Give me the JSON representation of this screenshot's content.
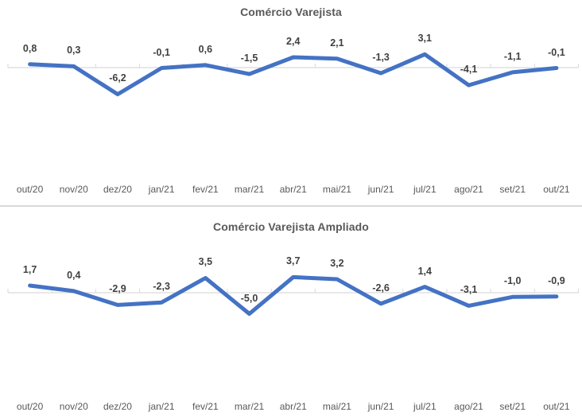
{
  "colors": {
    "line": "#4472C4",
    "axis": "#D9D9D9",
    "data_label": "#404040",
    "axis_label": "#595959",
    "title": "#595959",
    "divider": "#D9D9D9",
    "background": "#FFFFFF"
  },
  "chart_data": [
    {
      "type": "line",
      "title": "Comércio Varejista",
      "categories": [
        "out/20",
        "nov/20",
        "dez/20",
        "jan/21",
        "fev/21",
        "mar/21",
        "abr/21",
        "mai/21",
        "jun/21",
        "jul/21",
        "ago/21",
        "set/21",
        "out/21"
      ],
      "series": [
        {
          "name": "Comércio Varejista",
          "values": [
            0.8,
            0.3,
            -6.2,
            -0.1,
            0.6,
            -1.5,
            2.4,
            2.1,
            -1.3,
            3.1,
            -4.1,
            -1.1,
            -0.1
          ]
        }
      ],
      "data_labels": [
        "0,8",
        "0,3",
        "-6,2",
        "-0,1",
        "0,6",
        "-1,5",
        "2,4",
        "2,1",
        "-1,3",
        "3,1",
        "-4,1",
        "-1,1",
        "-0,1"
      ],
      "xlabel": "",
      "ylabel": "",
      "ylim": [
        -8,
        4
      ],
      "grid": false,
      "legend": "none",
      "decimal_separator": ","
    },
    {
      "type": "line",
      "title": "Comércio Varejista Ampliado",
      "categories": [
        "out/20",
        "nov/20",
        "dez/20",
        "jan/21",
        "fev/21",
        "mar/21",
        "abr/21",
        "mai/21",
        "jun/21",
        "jul/21",
        "ago/21",
        "set/21",
        "out/21"
      ],
      "series": [
        {
          "name": "Comércio Varejista Ampliado",
          "values": [
            1.7,
            0.4,
            -2.9,
            -2.3,
            3.5,
            -5.0,
            3.7,
            3.2,
            -2.6,
            1.4,
            -3.1,
            -1.0,
            -0.9
          ]
        }
      ],
      "data_labels": [
        "1,7",
        "0,4",
        "-2,9",
        "-2,3",
        "3,5",
        "-5,0",
        "3,7",
        "3,2",
        "-2,6",
        "1,4",
        "-3,1",
        "-1,0",
        "-0,9"
      ],
      "xlabel": "",
      "ylabel": "",
      "ylim": [
        -6,
        4
      ],
      "grid": false,
      "legend": "none",
      "decimal_separator": ","
    }
  ]
}
